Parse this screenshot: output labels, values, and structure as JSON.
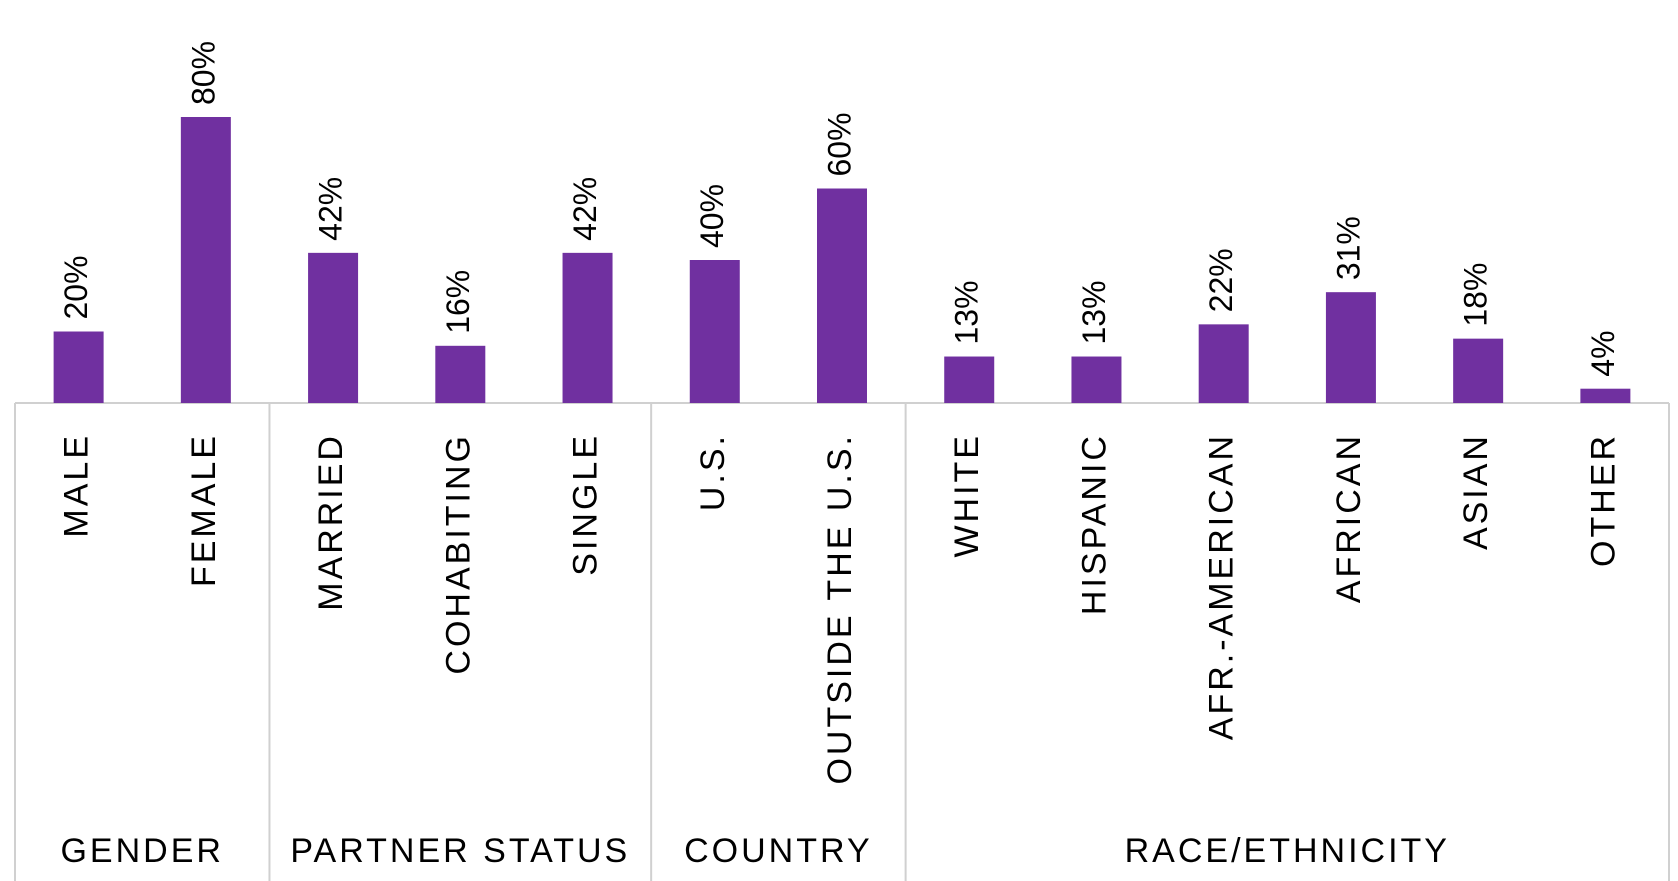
{
  "chart_data": {
    "type": "bar",
    "color": "#7030a0",
    "groups": [
      {
        "name": "GENDER",
        "categories": [
          "MALE",
          "FEMALE"
        ],
        "values": [
          20,
          80
        ],
        "value_labels": [
          "20%",
          "80%"
        ]
      },
      {
        "name": "PARTNER STATUS",
        "categories": [
          "MARRIED",
          "COHABITING",
          "SINGLE"
        ],
        "values": [
          42,
          16,
          42
        ],
        "value_labels": [
          "42%",
          "16%",
          "42%"
        ]
      },
      {
        "name": "COUNTRY",
        "categories": [
          "U.S.",
          "OUTSIDE THE U.S."
        ],
        "values": [
          40,
          60
        ],
        "value_labels": [
          "40%",
          "60%"
        ]
      },
      {
        "name": "RACE/ETHNICITY",
        "categories": [
          "WHITE",
          "HISPANIC",
          "AFR.-AMERICAN",
          "AFRICAN",
          "ASIAN",
          "OTHER"
        ],
        "values": [
          13,
          13,
          22,
          31,
          18,
          4
        ],
        "value_labels": [
          "13%",
          "13%",
          "22%",
          "31%",
          "18%",
          "4%"
        ]
      }
    ]
  }
}
